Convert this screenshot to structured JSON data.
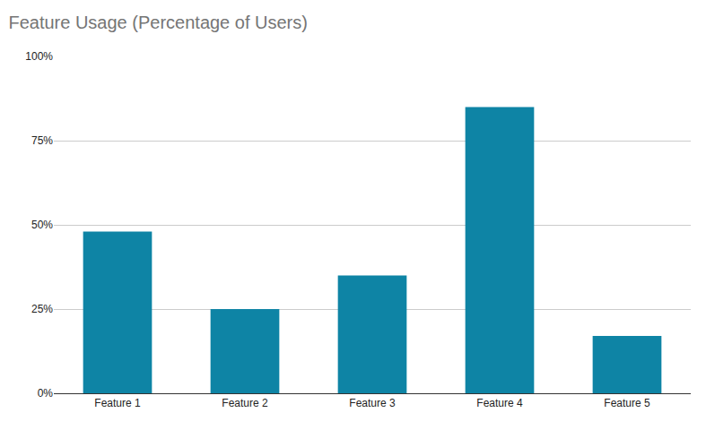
{
  "chart_data": {
    "type": "bar",
    "title": "Feature Usage (Percentage of Users)",
    "categories": [
      "Feature 1",
      "Feature 2",
      "Feature 3",
      "Feature 4",
      "Feature 5"
    ],
    "values": [
      48,
      25,
      35,
      85,
      17
    ],
    "color": "#0e84a5",
    "ylim": [
      0,
      100
    ],
    "yticks": [
      {
        "value": 0,
        "label": "0%"
      },
      {
        "value": 25,
        "label": "25%"
      },
      {
        "value": 50,
        "label": "50%"
      },
      {
        "value": 75,
        "label": "75%"
      },
      {
        "value": 100,
        "label": "100%"
      }
    ],
    "grid": true
  }
}
